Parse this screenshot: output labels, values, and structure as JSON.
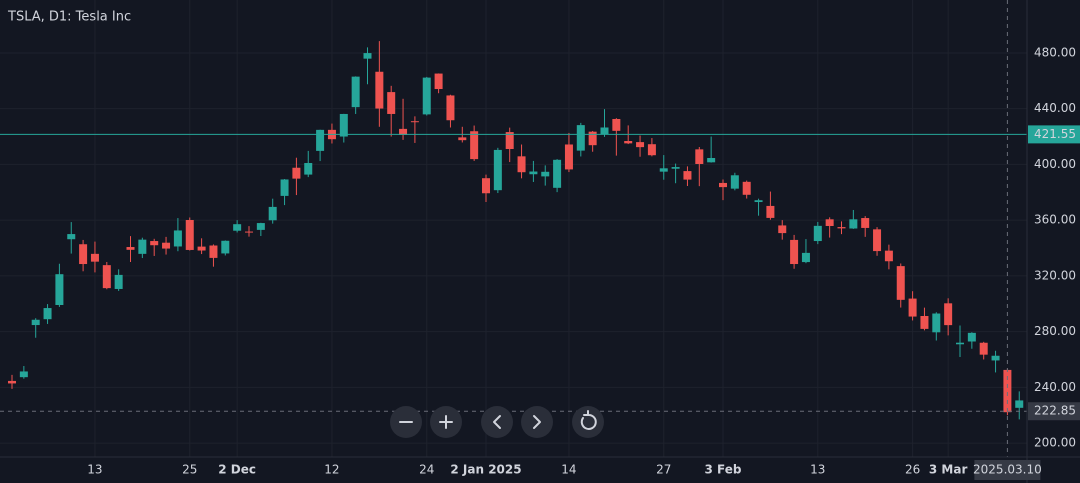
{
  "chart_data": {
    "type": "candlestick",
    "title": "TSLA, D1: Tesla Inc",
    "categories": [
      null,
      null,
      null,
      null,
      null,
      null,
      null,
      "13",
      null,
      null,
      null,
      null,
      null,
      null,
      null,
      "25",
      null,
      null,
      null,
      "2 Dec",
      null,
      null,
      null,
      null,
      null,
      null,
      null,
      "12",
      null,
      null,
      null,
      null,
      null,
      null,
      null,
      "24",
      null,
      null,
      null,
      null,
      "2 Jan 2025",
      null,
      null,
      null,
      null,
      null,
      null,
      "14",
      null,
      null,
      null,
      null,
      null,
      null,
      null,
      "27",
      null,
      null,
      null,
      null,
      "3 Feb",
      null,
      null,
      null,
      null,
      null,
      null,
      null,
      "13",
      null,
      null,
      null,
      null,
      null,
      null,
      null,
      "26",
      null,
      null,
      "3 Mar",
      null,
      null,
      null,
      null,
      null,
      null
    ],
    "open": [
      244.6,
      247.3,
      284.7,
      288.9,
      299.1,
      346.3,
      342.7,
      335.8,
      327.7,
      310.6,
      340.7,
      335.8,
      345.0,
      343.8,
      341.1,
      360.1,
      341.0,
      341.8,
      336.1,
      352.4,
      351.8,
      353.0,
      359.9,
      377.4,
      397.6,
      392.7,
      409.7,
      424.8,
      420.0,
      441.1,
      475.9,
      466.5,
      451.9,
      425.5,
      431.0,
      435.9,
      465.2,
      449.5,
      419.4,
      423.8,
      390.1,
      381.5,
      423.2,
      405.8,
      392.95,
      391.4,
      383.2,
      414.3,
      409.9,
      423.5,
      421.5,
      432.6,
      416.8,
      416.0,
      414.5,
      394.8,
      396.9,
      395.2,
      410.8,
      401.5,
      386.7,
      382.6,
      387.5,
      373.0,
      370.2,
      356.2,
      345.8,
      329.9,
      345.0,
      360.6,
      355.0,
      354.0,
      361.5,
      353.4,
      338.1,
      327.0,
      303.7,
      291.2,
      279.5,
      300.3,
      270.9,
      272.9,
      272.0,
      259.3,
      252.5,
      225.3
    ],
    "high": [
      248.9,
      255.3,
      289.6,
      299.75,
      328.7,
      358.6,
      345.8,
      344.6,
      329.98,
      324.7,
      348.55,
      347.4,
      346.6,
      347.99,
      361.5,
      361.9,
      346.96,
      342.55,
      345.45,
      360.0,
      355.7,
      358.1,
      375.4,
      389.5,
      404.8,
      409.7,
      424.9,
      429.3,
      436.3,
      463.2,
      483.99,
      488.5,
      456.4,
      447.1,
      434.5,
      462.8,
      465.3,
      450.0,
      427.0,
      427.9,
      392.7,
      411.9,
      426.4,
      414.3,
      402.5,
      399.3,
      403.8,
      422.6,
      429.8,
      424.0,
      439.7,
      433.2,
      428.0,
      420.7,
      418.9,
      406.7,
      400.6,
      398.6,
      412.5,
      419.99,
      389.2,
      394.0,
      388.4,
      375.4,
      380.5,
      360.0,
      349.4,
      346.4,
      358.7,
      362.0,
      359.1,
      367.3,
      362.9,
      354.98,
      342.4,
      328.9,
      309.0,
      297.2,
      293.9,
      303.9,
      284.35,
      279.55,
      272.65,
      266.25,
      253.4,
      237.1
    ],
    "low": [
      238.9,
      246.2,
      275.6,
      285.5,
      297.7,
      336.0,
      323.3,
      322.5,
      310.4,
      309.2,
      330.0,
      332.8,
      334.3,
      335.3,
      337.7,
      338.2,
      335.66,
      326.6,
      334.65,
      351.15,
      348.2,
      348.6,
      357.5,
      370.8,
      378.0,
      390.9,
      402.4,
      415.0,
      415.7,
      436.2,
      457.5,
      427.0,
      420.0,
      417.6,
      415.4,
      435.1,
      451.1,
      426.5,
      415.75,
      402.5,
      373.0,
      379.45,
      401.7,
      390.0,
      387.4,
      384.8,
      380.1,
      394.5,
      405.7,
      409.1,
      419.75,
      406.3,
      414.6,
      405.5,
      405.8,
      389.0,
      386.5,
      384.5,
      384.4,
      401.3,
      374.4,
      381.4,
      375.5,
      363.2,
      360.3,
      346.0,
      325.1,
      329.1,
      342.8,
      347.5,
      350.0,
      353.7,
      348.0,
      334.4,
      324.7,
      297.25,
      288.0,
      280.9,
      273.6,
      277.3,
      261.8,
      267.7,
      260.0,
      250.7,
      220.0,
      217.0
    ],
    "close": [
      242.8,
      251.4,
      288.5,
      296.9,
      321.2,
      350.0,
      328.5,
      330.2,
      311.2,
      320.7,
      338.7,
      346.0,
      342.0,
      339.6,
      352.6,
      338.6,
      338.2,
      332.9,
      345.2,
      357.1,
      351.4,
      357.9,
      369.5,
      389.2,
      389.8,
      401.0,
      424.8,
      418.1,
      436.2,
      463.0,
      479.9,
      440.1,
      436.2,
      421.1,
      430.6,
      462.3,
      454.1,
      431.7,
      417.4,
      403.8,
      379.3,
      410.4,
      411.05,
      394.4,
      394.9,
      394.7,
      403.3,
      396.4,
      428.2,
      413.8,
      426.5,
      424.1,
      415.1,
      412.4,
      406.6,
      397.2,
      398.1,
      389.1,
      400.3,
      404.6,
      383.7,
      392.2,
      378.2,
      374.3,
      361.6,
      350.7,
      328.5,
      336.5,
      355.9,
      355.8,
      354.1,
      360.6,
      354.4,
      337.8,
      330.5,
      302.8,
      290.8,
      281.95,
      292.98,
      284.65,
      272.04,
      279.1,
      263.45,
      262.67,
      222.15,
      230.6
    ],
    "up_color": "#26a69a",
    "down_color": "#ef5350",
    "ylim": [
      190,
      518
    ],
    "yticks": [
      {
        "value": 200,
        "label": "200.00"
      },
      {
        "value": 240,
        "label": "240.00"
      },
      {
        "value": 280,
        "label": "280.00"
      },
      {
        "value": 320,
        "label": "320.00"
      },
      {
        "value": 360,
        "label": "360.00"
      },
      {
        "value": 400,
        "label": "400.00"
      },
      {
        "value": 440,
        "label": "440.00"
      },
      {
        "value": 480,
        "label": "480.00"
      }
    ],
    "grid": true,
    "hline": {
      "value": 421.55,
      "label": "421.55",
      "color": "#26a69a"
    },
    "crosshair": {
      "date": "2025.03.10",
      "price": {
        "value": 222.85,
        "label": "222.85"
      }
    }
  }
}
